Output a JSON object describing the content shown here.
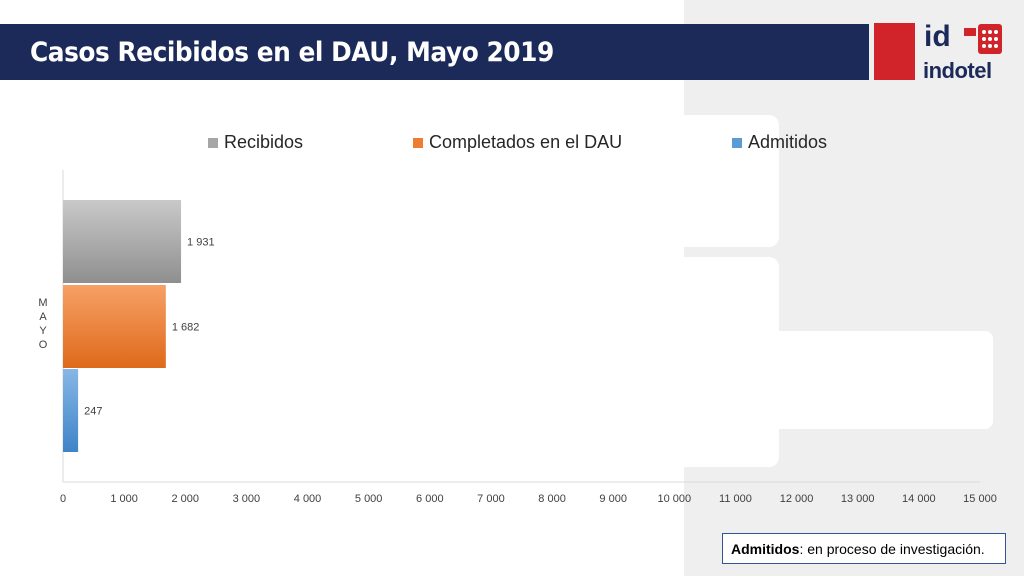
{
  "title": "Casos Recibidos en el DAU, Mayo 2019",
  "logo": {
    "id_text": "id",
    "brand_text": "indotel"
  },
  "note": {
    "bold": "Admitidos",
    "rest": ": en proceso de investigación."
  },
  "colors": {
    "title_bar": "#1c2a5a",
    "logo_red": "#d1232a",
    "recibidos": "#a6a6a6",
    "completados": "#ed7d31",
    "admitidos": "#5b9bd5"
  },
  "chart_data": {
    "type": "bar",
    "orientation": "horizontal",
    "categories": [
      "M\nA\nY\nO"
    ],
    "category_label": "MAYO",
    "series": [
      {
        "name": "Recibidos",
        "values": [
          1931
        ],
        "data_label": "1 931"
      },
      {
        "name": "Completados en el DAU",
        "values": [
          1682
        ],
        "data_label": "1 682"
      },
      {
        "name": "Admitidos",
        "values": [
          247
        ],
        "data_label": "247"
      }
    ],
    "xlim": [
      0,
      15000
    ],
    "x_ticks": [
      "0",
      "1 000",
      "2 000",
      "3 000",
      "4 000",
      "5 000",
      "6 000",
      "7 000",
      "8 000",
      "9 000",
      "10 000",
      "11 000",
      "12 000",
      "13 000",
      "14 000",
      "15 000"
    ],
    "legend_position": "top",
    "grid": false
  }
}
